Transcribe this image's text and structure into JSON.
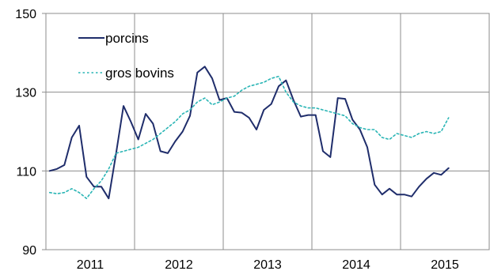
{
  "chart_data": {
    "type": "line",
    "title": "",
    "xlabel": "",
    "ylabel": "",
    "ylim": [
      90,
      150
    ],
    "y_ticks": [
      90,
      110,
      130,
      150
    ],
    "x_ticks": [
      "2011",
      "2012",
      "2013",
      "2014",
      "2015"
    ],
    "grid": "vertical gridlines between years, horizontal gridlines at labeled y ticks",
    "legend_position": "top-left",
    "x_start": "2011-01",
    "series": [
      {
        "name": "porcins",
        "style": "solid",
        "color": "#1f2d6b",
        "values": [
          110.0,
          110.5,
          111.5,
          118.5,
          121.5,
          108.5,
          106.0,
          106.0,
          103.0,
          114.5,
          126.5,
          122.5,
          118.0,
          124.5,
          122.0,
          115.0,
          114.5,
          117.5,
          120.0,
          124.0,
          135.0,
          136.5,
          133.5,
          128.0,
          128.5,
          125.0,
          124.8,
          123.5,
          120.5,
          125.5,
          127.0,
          131.5,
          133.0,
          128.0,
          123.8,
          124.2,
          124.2,
          115.0,
          113.5,
          128.5,
          128.3,
          123.0,
          120.5,
          116.0,
          106.5,
          104.0,
          105.5,
          104.0,
          104.0,
          103.5,
          106.0,
          108.0,
          109.5,
          109.0,
          110.7
        ]
      },
      {
        "name": "gros bovins",
        "style": "dotted",
        "color": "#2ab5b5",
        "values": [
          104.5,
          104.2,
          104.5,
          105.5,
          104.5,
          103.0,
          105.5,
          107.5,
          110.5,
          114.5,
          115.0,
          115.5,
          116.0,
          117.0,
          118.0,
          119.5,
          121.0,
          122.5,
          124.5,
          125.5,
          127.5,
          128.5,
          126.8,
          127.5,
          128.5,
          129.0,
          130.5,
          131.5,
          132.0,
          132.5,
          133.5,
          134.0,
          130.0,
          127.5,
          126.5,
          126.0,
          126.0,
          125.5,
          125.0,
          124.5,
          124.0,
          122.0,
          121.0,
          120.5,
          120.5,
          118.5,
          118.0,
          119.5,
          119.0,
          118.5,
          119.5,
          120.0,
          119.5,
          120.0,
          123.5
        ]
      }
    ]
  }
}
